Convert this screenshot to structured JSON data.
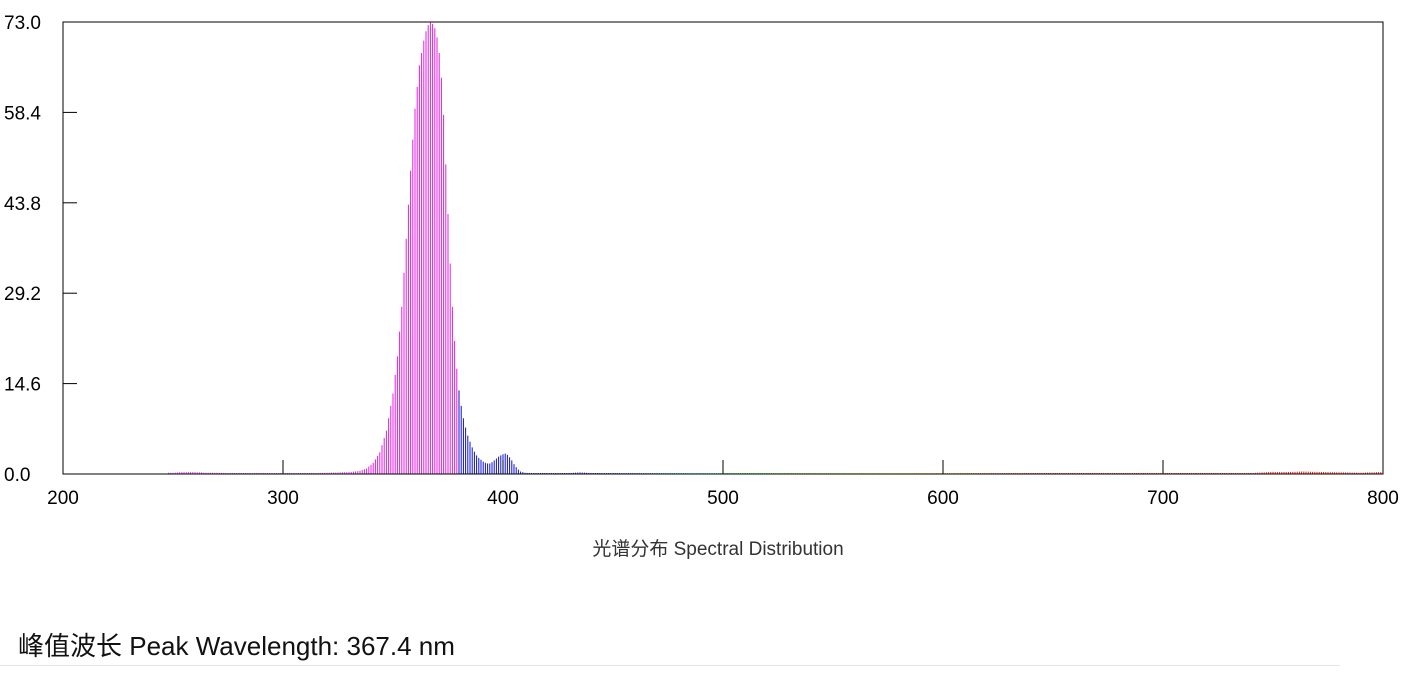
{
  "chart_data": {
    "type": "bar",
    "title": "",
    "xlabel": "光谱分布 Spectral Distribution",
    "ylabel": "",
    "xlim": [
      200,
      800
    ],
    "ylim": [
      0,
      73.0
    ],
    "x_ticks": [
      "200",
      "300",
      "400",
      "500",
      "600",
      "700",
      "800"
    ],
    "y_ticks": [
      "0.0",
      "14.6",
      "29.2",
      "43.8",
      "58.4",
      "73.0"
    ],
    "grid": false,
    "legend": "none",
    "bar_step_nm": 1,
    "colors": {
      "uv_magenta": "#e020e0",
      "violet_blue": "#1010d0",
      "frame": "#000000"
    },
    "x": [
      250,
      255,
      260,
      265,
      270,
      280,
      290,
      300,
      310,
      320,
      330,
      335,
      338,
      341,
      344,
      347,
      350,
      352,
      354,
      356,
      358,
      360,
      362,
      364,
      365,
      366,
      367,
      368,
      369,
      370,
      371,
      372,
      373,
      374,
      375,
      376,
      377,
      378,
      379,
      380,
      381,
      382,
      383,
      384,
      385,
      386,
      387,
      388,
      389,
      390,
      391,
      392,
      393,
      394,
      395,
      396,
      397,
      398,
      399,
      400,
      401,
      402,
      403,
      404,
      405,
      406,
      407,
      408,
      409,
      410,
      412,
      415,
      420,
      430,
      435,
      440,
      450,
      500,
      550,
      600,
      650,
      700,
      740,
      748,
      750,
      752,
      760,
      764,
      768,
      790,
      798
    ],
    "values": [
      0.2,
      0.3,
      0.3,
      0.2,
      0.2,
      0.1,
      0.1,
      0.1,
      0.1,
      0.2,
      0.3,
      0.5,
      0.9,
      1.8,
      3.5,
      7.0,
      13.0,
      19.0,
      27.0,
      38.0,
      49.0,
      59.0,
      66.0,
      70.0,
      71.5,
      72.5,
      72.9,
      72.7,
      72.0,
      70.5,
      68.0,
      64.0,
      58.0,
      50.0,
      42.0,
      34.0,
      27.0,
      21.5,
      17.0,
      13.5,
      11.0,
      9.0,
      7.5,
      6.2,
      5.2,
      4.3,
      3.6,
      3.0,
      2.6,
      2.3,
      2.0,
      1.8,
      1.7,
      1.7,
      1.9,
      2.2,
      2.5,
      2.8,
      3.0,
      3.2,
      3.3,
      3.1,
      2.7,
      2.2,
      1.6,
      1.1,
      0.7,
      0.4,
      0.3,
      0.2,
      0.15,
      0.1,
      0.1,
      0.15,
      0.25,
      0.15,
      0.1,
      0.1,
      0.1,
      0.1,
      0.1,
      0.1,
      0.15,
      0.3,
      0.35,
      0.3,
      0.35,
      0.4,
      0.35,
      0.2,
      0.3
    ]
  },
  "peak": {
    "label": "峰值波长 Peak Wavelength: 367.4 nm"
  }
}
